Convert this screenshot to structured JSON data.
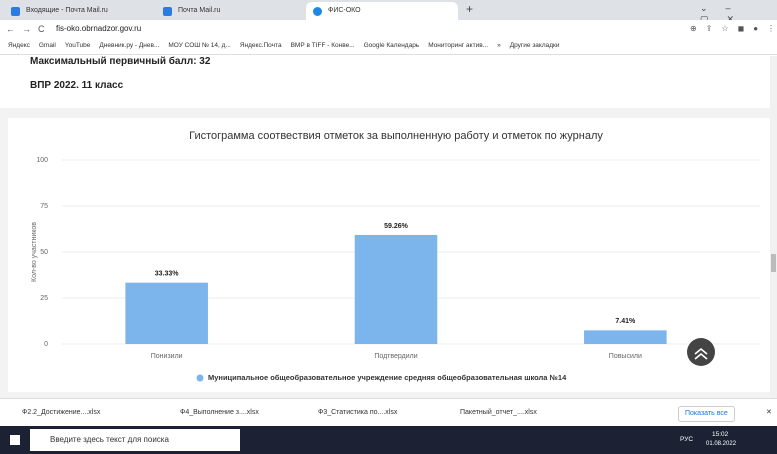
{
  "tabs": [
    "Входящие - Почта Mail.ru",
    "Почта Mail.ru",
    "ФИС-ОКО"
  ],
  "address": "fis-oko.obrnadzor.gov.ru",
  "bookmarks": [
    "Яндекс",
    "Gmail",
    "YouTube",
    "Дневник.ру - Днев...",
    "МОУ СОШ № 14, д...",
    "Яндекс.Почта",
    "ВМР в TIFF - Конве...",
    "Google Календарь",
    "Мониторинг актив...",
    "»",
    "Другие закладки"
  ],
  "header": {
    "max_score": "Максимальный первичный балл: 32",
    "title": "ВПР 2022. 11 класс"
  },
  "chart_data": {
    "type": "bar",
    "title": "Гистограмма соотвествия отметок за выполненную работу и отметок по журналу",
    "y_label": "Кол-во участников",
    "categories": [
      "Понизили",
      "Подтвердили",
      "Повысили"
    ],
    "series": [
      {
        "name": "Муниципальное общеобразовательное учреждение средняя общеобразовательная школа №14",
        "color": "#7cb5ec",
        "values": [
          33.33,
          59.26,
          7.41
        ],
        "value_labels": [
          "33.33%",
          "59.26%",
          "7.41%"
        ]
      }
    ],
    "ylim": [
      0,
      100
    ],
    "yticks": [
      0,
      25,
      50,
      75,
      100
    ],
    "grid": true
  },
  "downloads": [
    "Ф2.2_Достижение....xlsx",
    "Ф4_Выполнение з....xlsx",
    "Ф3_Статистика по....xlsx",
    "Пакетный_отчет_....xlsx"
  ],
  "show_all": "Показать все",
  "taskbar": {
    "search": "Введите здесь текст для поиска",
    "lang": "РУС",
    "time": "15:02",
    "date": "01.08.2022"
  }
}
